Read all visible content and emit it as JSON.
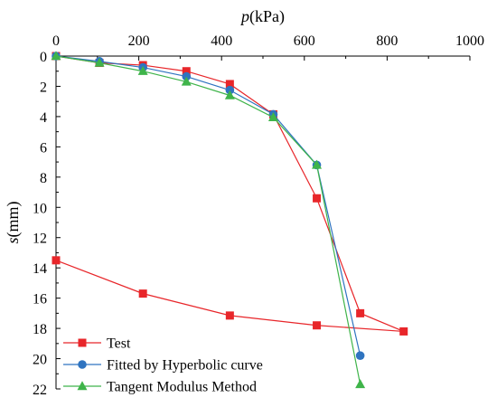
{
  "chart_data": {
    "type": "line",
    "title": "",
    "xlabel": {
      "var": "p",
      "unit": "(kPa)"
    },
    "ylabel": {
      "var": "s",
      "unit": "(mm)"
    },
    "x_axis_position": "top",
    "y_inverted": true,
    "xlim": [
      0,
      1000
    ],
    "ylim": [
      0,
      22
    ],
    "x_ticks": [
      "0",
      "200",
      "400",
      "600",
      "800",
      "1000"
    ],
    "y_ticks": [
      "0",
      "2",
      "4",
      "6",
      "8",
      "10",
      "12",
      "14",
      "16",
      "18",
      "20",
      "22"
    ],
    "grid": false,
    "legend_position": "bottom-left",
    "series": [
      {
        "name": "Test",
        "color": "#e8262a",
        "marker": "square",
        "points": [
          [
            0,
            0
          ],
          [
            105,
            0.45
          ],
          [
            210,
            0.6
          ],
          [
            315,
            1.0
          ],
          [
            420,
            1.85
          ],
          [
            525,
            3.85
          ],
          [
            630,
            9.4
          ],
          [
            735,
            17.0
          ],
          [
            840,
            18.2
          ],
          [
            630,
            17.8
          ],
          [
            420,
            17.15
          ],
          [
            210,
            15.7
          ],
          [
            0,
            13.5
          ]
        ]
      },
      {
        "name": "Fitted by Hyperbolic curve",
        "color": "#2f74c0",
        "marker": "circle",
        "points": [
          [
            0,
            0
          ],
          [
            105,
            0.35
          ],
          [
            210,
            0.75
          ],
          [
            315,
            1.35
          ],
          [
            420,
            2.25
          ],
          [
            525,
            3.85
          ],
          [
            630,
            7.2
          ],
          [
            735,
            19.8
          ]
        ]
      },
      {
        "name": "Tangent Modulus Method",
        "color": "#3fb44a",
        "marker": "triangle",
        "points": [
          [
            0,
            0
          ],
          [
            105,
            0.45
          ],
          [
            210,
            1.0
          ],
          [
            315,
            1.7
          ],
          [
            420,
            2.6
          ],
          [
            525,
            4.05
          ],
          [
            630,
            7.2
          ],
          [
            735,
            21.7
          ]
        ]
      }
    ]
  }
}
